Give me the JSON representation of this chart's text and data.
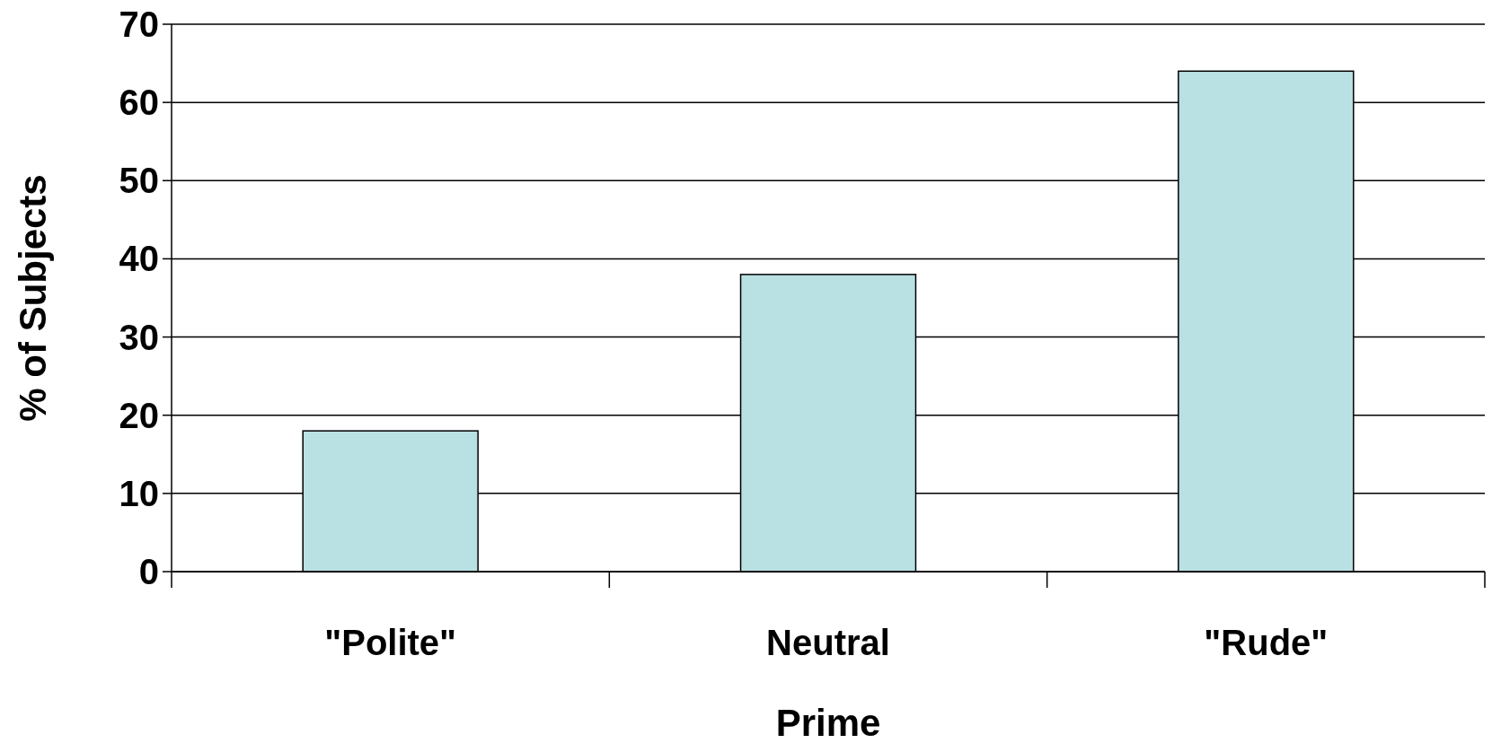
{
  "chart_data": {
    "type": "bar",
    "xlabel": "Prime",
    "ylabel": "% of Subjects",
    "categories": [
      "\"Polite\"",
      "Neutral",
      "\"Rude\""
    ],
    "values": [
      18,
      38,
      64
    ],
    "color": "#b9e0e3",
    "ylim": [
      0,
      70
    ],
    "yticks": [
      0,
      10,
      20,
      30,
      40,
      50,
      60,
      70
    ],
    "grid": "y"
  }
}
